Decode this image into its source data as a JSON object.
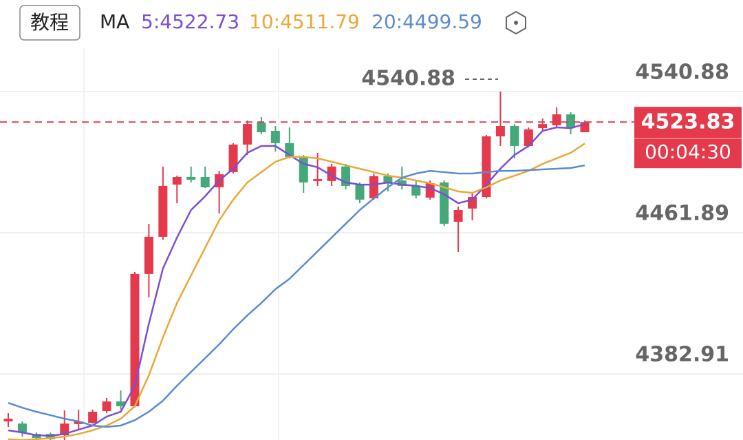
{
  "chart_data": {
    "type": "candlestick",
    "button": "教程",
    "ma_label": "MA",
    "ylim": [
      4345.9,
      4592.1
    ],
    "yticks": [
      4540.88,
      4461.89,
      4382.91
    ],
    "high_marker": 4540.88,
    "last_price": 4523.83,
    "countdown": "00:04:30",
    "up_color": "#e5394c",
    "down_color": "#45a87a",
    "candles": {
      "open": [
        4356.3,
        4355.1,
        4349.3,
        4349.3,
        4348.6,
        4354.8,
        4355.5,
        4362.1,
        4367.5,
        4364.8,
        4438.8,
        4459.6,
        4488.8,
        4493.1,
        4493.1,
        4487.3,
        4495.8,
        4511.2,
        4523.5,
        4518.9,
        4512.0,
        4504.3,
        4490.8,
        4490.8,
        4498.9,
        4488.8,
        4481.1,
        4493.5,
        4491.1,
        4488.1,
        4481.5,
        4490.0,
        4468.0,
        4475.4,
        4481.9,
        4515.8,
        4521.6,
        4510.4,
        4520.4,
        4522.0,
        4528.1,
        4518.1
      ],
      "high": [
        4360.9,
        4356.3,
        4350.1,
        4350.1,
        4362.5,
        4362.9,
        4362.9,
        4369.4,
        4373.6,
        4439.9,
        4466.9,
        4498.9,
        4493.8,
        4498.9,
        4498.9,
        4496.5,
        4512.0,
        4524.7,
        4526.6,
        4521.6,
        4520.8,
        4505.4,
        4506.6,
        4500.4,
        4500.4,
        4490.0,
        4495.0,
        4495.0,
        4498.9,
        4491.1,
        4491.1,
        4491.1,
        4476.5,
        4484.2,
        4516.6,
        4540.88,
        4522.7,
        4520.8,
        4525.8,
        4532.0,
        4529.3,
        4524.7
      ],
      "low": [
        4353.2,
        4347.8,
        4346.3,
        4345.9,
        4345.9,
        4351.3,
        4355.1,
        4360.9,
        4362.9,
        4364.0,
        4425.7,
        4458.0,
        4478.4,
        4490.0,
        4486.9,
        4472.7,
        4495.0,
        4505.4,
        4517.0,
        4507.3,
        4503.5,
        4484.2,
        4488.1,
        4488.1,
        4486.1,
        4478.4,
        4480.4,
        4485.0,
        4486.1,
        4481.1,
        4480.4,
        4465.7,
        4451.1,
        4468.8,
        4481.1,
        4510.4,
        4503.5,
        4509.6,
        4518.9,
        4520.8,
        4517.0,
        4518.1
      ],
      "close": [
        4357.8,
        4350.1,
        4347.0,
        4346.3,
        4355.1,
        4356.3,
        4361.7,
        4367.5,
        4364.8,
        4438.8,
        4459.6,
        4488.1,
        4493.1,
        4491.5,
        4487.3,
        4494.6,
        4511.2,
        4522.7,
        4518.1,
        4512.0,
        4504.3,
        4490.0,
        4491.9,
        4498.9,
        4488.1,
        4480.4,
        4493.5,
        4490.0,
        4488.1,
        4482.7,
        4489.6,
        4466.9,
        4474.6,
        4481.9,
        4515.8,
        4521.6,
        4510.4,
        4519.7,
        4522.7,
        4528.1,
        4520.8,
        4523.83
      ]
    },
    "ma": [
      {
        "name": "5:4522.73",
        "color": "#7b4fd6",
        "values": [
          4351.3,
          4350.1,
          4348.6,
          4348.2,
          4349.3,
          4351.7,
          4354.0,
          4359.0,
          4361.7,
          4376.3,
          4411.0,
          4441.8,
          4459.2,
          4474.6,
          4482.3,
          4491.1,
          4497.7,
          4506.6,
          4510.4,
          4510.4,
          4505.4,
          4500.4,
          4498.5,
          4493.8,
          4490.0,
          4488.8,
          4488.8,
          4490.0,
          4488.8,
          4488.1,
          4486.9,
          4483.4,
          4478.4,
          4480.4,
          4488.8,
          4497.7,
          4505.4,
          4510.4,
          4518.9,
          4520.8,
          4520.4,
          4522.73
        ]
      },
      {
        "name": "10:4511.79",
        "color": "#e8a838",
        "values": [
          4346.3,
          4345.9,
          4346.3,
          4347.0,
          4347.8,
          4349.3,
          4351.3,
          4354.0,
          4357.8,
          4364.8,
          4382.1,
          4403.3,
          4422.6,
          4438.0,
          4453.4,
          4468.8,
          4480.4,
          4490.0,
          4495.8,
          4501.6,
          4504.3,
          4504.3,
          4503.5,
          4501.6,
          4499.6,
          4497.7,
          4495.8,
          4493.8,
          4492.7,
          4491.1,
          4489.6,
          4487.3,
          4485.0,
          4484.2,
          4487.3,
          4491.1,
          4493.8,
          4496.5,
          4500.4,
          4503.5,
          4506.6,
          4511.79
        ]
      },
      {
        "name": "20:4499.59",
        "color": "#5b8bd0",
        "values": [
          4366.7,
          4364.0,
          4361.7,
          4359.8,
          4357.8,
          4356.3,
          4354.0,
          4353.2,
          4354.0,
          4357.0,
          4361.7,
          4367.9,
          4376.3,
          4384.0,
          4391.7,
          4399.4,
          4407.9,
          4415.6,
          4422.6,
          4430.3,
          4436.1,
          4443.8,
          4451.5,
          4459.2,
          4466.9,
          4474.6,
          4481.1,
          4487.3,
          4492.7,
          4495.0,
          4496.5,
          4495.8,
          4495.0,
          4495.0,
          4495.8,
          4496.5,
          4496.5,
          4496.9,
          4497.3,
          4497.7,
          4498.1,
          4499.59
        ]
      }
    ]
  }
}
